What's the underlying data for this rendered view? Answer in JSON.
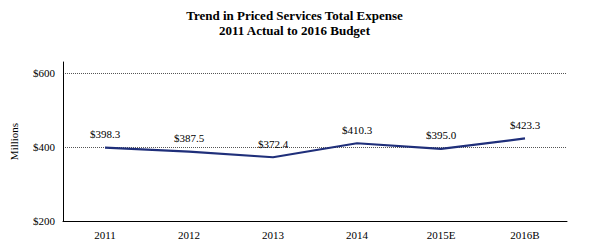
{
  "chart_data": {
    "type": "line",
    "title": "Trend in Priced Services Total Expense",
    "subtitle": "2011 Actual to 2016 Budget",
    "ylabel": "Millions",
    "categories": [
      "2011",
      "2012",
      "2013",
      "2014",
      "2015E",
      "2016B"
    ],
    "values": [
      398.3,
      387.5,
      372.4,
      410.3,
      395.0,
      423.3
    ],
    "value_labels": [
      "$398.3",
      "$387.5",
      "$372.4",
      "$410.3",
      "$395.0",
      "$423.3"
    ],
    "data_labels": true,
    "color": "#1F2F7A",
    "ylim": [
      200,
      630
    ],
    "yticks": [
      {
        "value": 200,
        "label": "$200"
      },
      {
        "value": 400,
        "label": "$400"
      },
      {
        "value": 600,
        "label": "$600"
      }
    ],
    "grid": true
  }
}
